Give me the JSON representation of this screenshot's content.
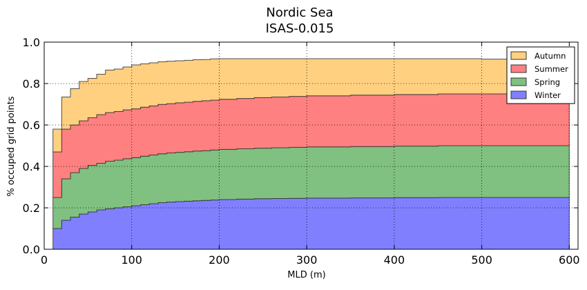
{
  "chart_data": {
    "type": "area",
    "title": [
      "Nordic Sea",
      "ISAS-0.015"
    ],
    "xlabel": "MLD (m)",
    "ylabel": "% occuped grid points",
    "xlim": [
      0,
      610
    ],
    "ylim": [
      0,
      1.0
    ],
    "grid": true,
    "legend_placement": "top-right",
    "x_ticks": [
      0,
      100,
      200,
      300,
      400,
      500,
      600
    ],
    "y_ticks": [
      0.0,
      0.2,
      0.4,
      0.6,
      0.8,
      1.0
    ],
    "x_tick_labels": [
      "0",
      "100",
      "200",
      "300",
      "400",
      "500",
      "600"
    ],
    "y_tick_labels": [
      "0.0",
      "0.2",
      "0.4",
      "0.6",
      "0.8",
      "1.0"
    ],
    "step_x": [
      10,
      20,
      30,
      40,
      50,
      60,
      70,
      80,
      90,
      100,
      110,
      120,
      130,
      140,
      150,
      160,
      170,
      180,
      190,
      200,
      220,
      240,
      260,
      280,
      300,
      350,
      400,
      450,
      500,
      550,
      600
    ],
    "stacked": true,
    "series": [
      {
        "name": "Winter",
        "color": "#8080ff",
        "values": [
          0.1,
          0.14,
          0.155,
          0.17,
          0.18,
          0.19,
          0.195,
          0.2,
          0.205,
          0.21,
          0.215,
          0.22,
          0.225,
          0.228,
          0.23,
          0.232,
          0.234,
          0.236,
          0.238,
          0.24,
          0.242,
          0.244,
          0.245,
          0.246,
          0.247,
          0.248,
          0.249,
          0.25,
          0.25,
          0.25,
          0.25
        ]
      },
      {
        "name": "Spring",
        "color": "#80c080",
        "values": [
          0.15,
          0.2,
          0.215,
          0.22,
          0.225,
          0.225,
          0.23,
          0.23,
          0.232,
          0.232,
          0.234,
          0.235,
          0.236,
          0.237,
          0.238,
          0.239,
          0.24,
          0.24,
          0.241,
          0.242,
          0.243,
          0.244,
          0.245,
          0.246,
          0.247,
          0.248,
          0.249,
          0.25,
          0.25,
          0.25,
          0.25
        ]
      },
      {
        "name": "Summer",
        "color": "#ff8080",
        "values": [
          0.22,
          0.24,
          0.23,
          0.23,
          0.23,
          0.235,
          0.235,
          0.235,
          0.236,
          0.236,
          0.237,
          0.237,
          0.238,
          0.238,
          0.239,
          0.239,
          0.24,
          0.241,
          0.241,
          0.242,
          0.243,
          0.244,
          0.245,
          0.246,
          0.247,
          0.248,
          0.249,
          0.25,
          0.25,
          0.25,
          0.25
        ]
      },
      {
        "name": "Autumn",
        "color": "#ffd080",
        "values": [
          0.11,
          0.155,
          0.175,
          0.19,
          0.19,
          0.195,
          0.205,
          0.205,
          0.207,
          0.212,
          0.209,
          0.208,
          0.206,
          0.205,
          0.203,
          0.202,
          0.201,
          0.199,
          0.199,
          0.196,
          0.192,
          0.188,
          0.185,
          0.182,
          0.179,
          0.176,
          0.173,
          0.17,
          0.168,
          0.166,
          0.164
        ]
      }
    ],
    "legend_order": [
      "Autumn",
      "Summer",
      "Spring",
      "Winter"
    ]
  }
}
